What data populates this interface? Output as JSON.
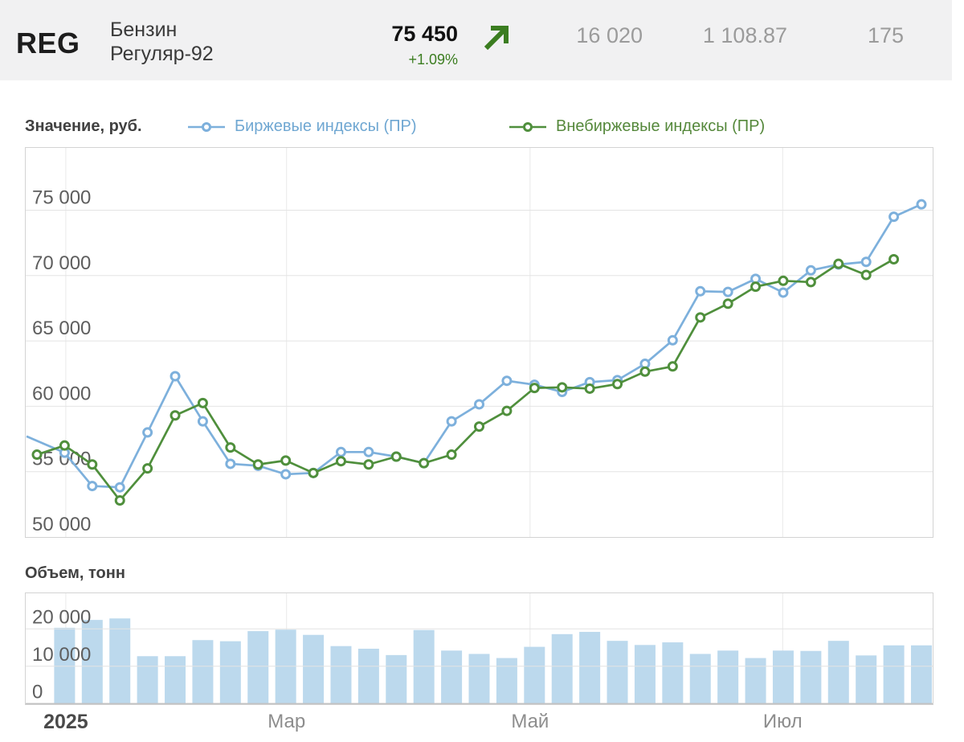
{
  "header": {
    "code": "REG",
    "name_line1": "Бензин",
    "name_line2": "Регуляр-92",
    "price": "75 450",
    "change": "+1.09%",
    "trend_icon": "arrow-up-right",
    "stats": [
      "16 020",
      "1 108.87",
      "175"
    ]
  },
  "colors": {
    "exchange_blue": "#7db0dc",
    "exchange_text": "#6fa7d2",
    "otc_green": "#4f8f3c",
    "otc_text": "#55883b",
    "bar_fill": "#bcd9ed",
    "accent_green": "#3b7d20",
    "header_bg": "#f1f1f2",
    "grid_h": "#e4e4e4",
    "grid_v": "#e9e9e9",
    "border": "#d3d3d3",
    "baseline": "#c2c2c2"
  },
  "value_chart": {
    "title": "Значение, руб.",
    "legend": [
      {
        "label": "Биржевые индексы (ПР)",
        "series": "exchange"
      },
      {
        "label": "Внебиржевые индексы (ПР)",
        "series": "otc"
      }
    ]
  },
  "volume_chart": {
    "title": "Объем, тонн"
  },
  "x_axis": {
    "ticks": [
      {
        "label": "2025",
        "pos": 0.045,
        "emph": true
      },
      {
        "label": "Мар",
        "pos": 0.288,
        "emph": false
      },
      {
        "label": "Май",
        "pos": 0.556,
        "emph": false
      },
      {
        "label": "Июл",
        "pos": 0.834,
        "emph": false
      }
    ]
  },
  "chart_data": [
    {
      "type": "line",
      "title": "Значение, руб.",
      "x_unit": "weeks, Jan–Aug 2025",
      "n_points": 33,
      "ylim": [
        50000,
        79800
      ],
      "grid": true,
      "y_ticks": [
        {
          "v": 75000,
          "label": "75 000"
        },
        {
          "v": 70000,
          "label": "70 000"
        },
        {
          "v": 65000,
          "label": "65 000"
        },
        {
          "v": 60000,
          "label": "60 000"
        },
        {
          "v": 55000,
          "label": "55 000"
        },
        {
          "v": 50000,
          "label": "50 000"
        }
      ],
      "series": [
        {
          "name": "Биржевые индексы (ПР)",
          "color_key": "exchange_blue",
          "edge_start": true,
          "values": [
            57700,
            56450,
            53900,
            53800,
            58000,
            62300,
            58850,
            55600,
            55450,
            54800,
            54900,
            56500,
            56500,
            56150,
            55650,
            58850,
            60150,
            61950,
            61650,
            61100,
            61850,
            62000,
            63250,
            65050,
            68800,
            68750,
            69750,
            68700,
            70400,
            70850,
            71050,
            74500,
            75450
          ]
        },
        {
          "name": "Внебиржевые индексы (ПР)",
          "color_key": "otc_green",
          "edge_start": false,
          "values": [
            56300,
            57000,
            55550,
            52800,
            55250,
            59300,
            60250,
            56850,
            55550,
            55850,
            54900,
            55800,
            55550,
            56150,
            55650,
            56300,
            58450,
            59650,
            61400,
            61450,
            61350,
            61700,
            62650,
            63050,
            66800,
            67850,
            69150,
            69600,
            69500,
            70900,
            70050,
            71250,
            null
          ]
        }
      ]
    },
    {
      "type": "bar",
      "title": "Объем, тонн",
      "n_points": 33,
      "ylim": [
        0,
        30000
      ],
      "grid": true,
      "y_ticks": [
        {
          "v": 20000,
          "label": "20 000"
        },
        {
          "v": 10000,
          "label": "10 000"
        },
        {
          "v": 0,
          "label": "0"
        }
      ],
      "values": [
        null,
        20300,
        22400,
        22800,
        12700,
        12700,
        17000,
        16700,
        19400,
        19800,
        18400,
        15400,
        14700,
        13000,
        19700,
        14200,
        13300,
        12200,
        15200,
        18600,
        19200,
        16800,
        15700,
        16400,
        13300,
        14200,
        12200,
        14200,
        14100,
        16800,
        12900,
        15600,
        15600
      ]
    }
  ]
}
